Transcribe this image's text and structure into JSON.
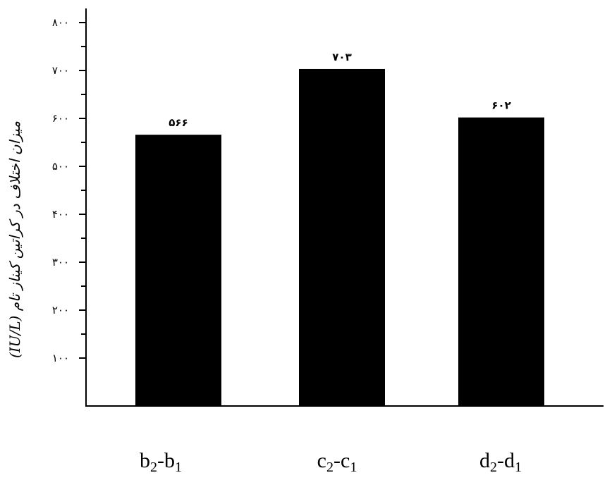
{
  "chart_data": {
    "type": "bar",
    "categories": [
      {
        "base": "b",
        "a": "2",
        "sep": "-",
        "b": "1"
      },
      {
        "base": "c",
        "a": "2",
        "sep": "-",
        "b": "1"
      },
      {
        "base": "d",
        "a": "2",
        "sep": "-",
        "b": "1"
      }
    ],
    "values": [
      566,
      703,
      602
    ],
    "data_labels": [
      "۵۶۶",
      "۷۰۳",
      "۶۰۲"
    ],
    "ylabel": "میزان اختلاف در کراتین کیناز تام (IU/L)",
    "yticks": [
      100,
      200,
      300,
      400,
      500,
      600,
      700,
      800
    ],
    "ytick_labels": [
      "۱۰۰",
      "۲۰۰",
      "۳۰۰",
      "۴۰۰",
      "۵۰۰",
      "۶۰۰",
      "۷۰۰",
      "۸۰۰"
    ],
    "ylim": [
      0,
      800
    ],
    "bar_color": "#000000",
    "grid": false,
    "legend": "none"
  }
}
